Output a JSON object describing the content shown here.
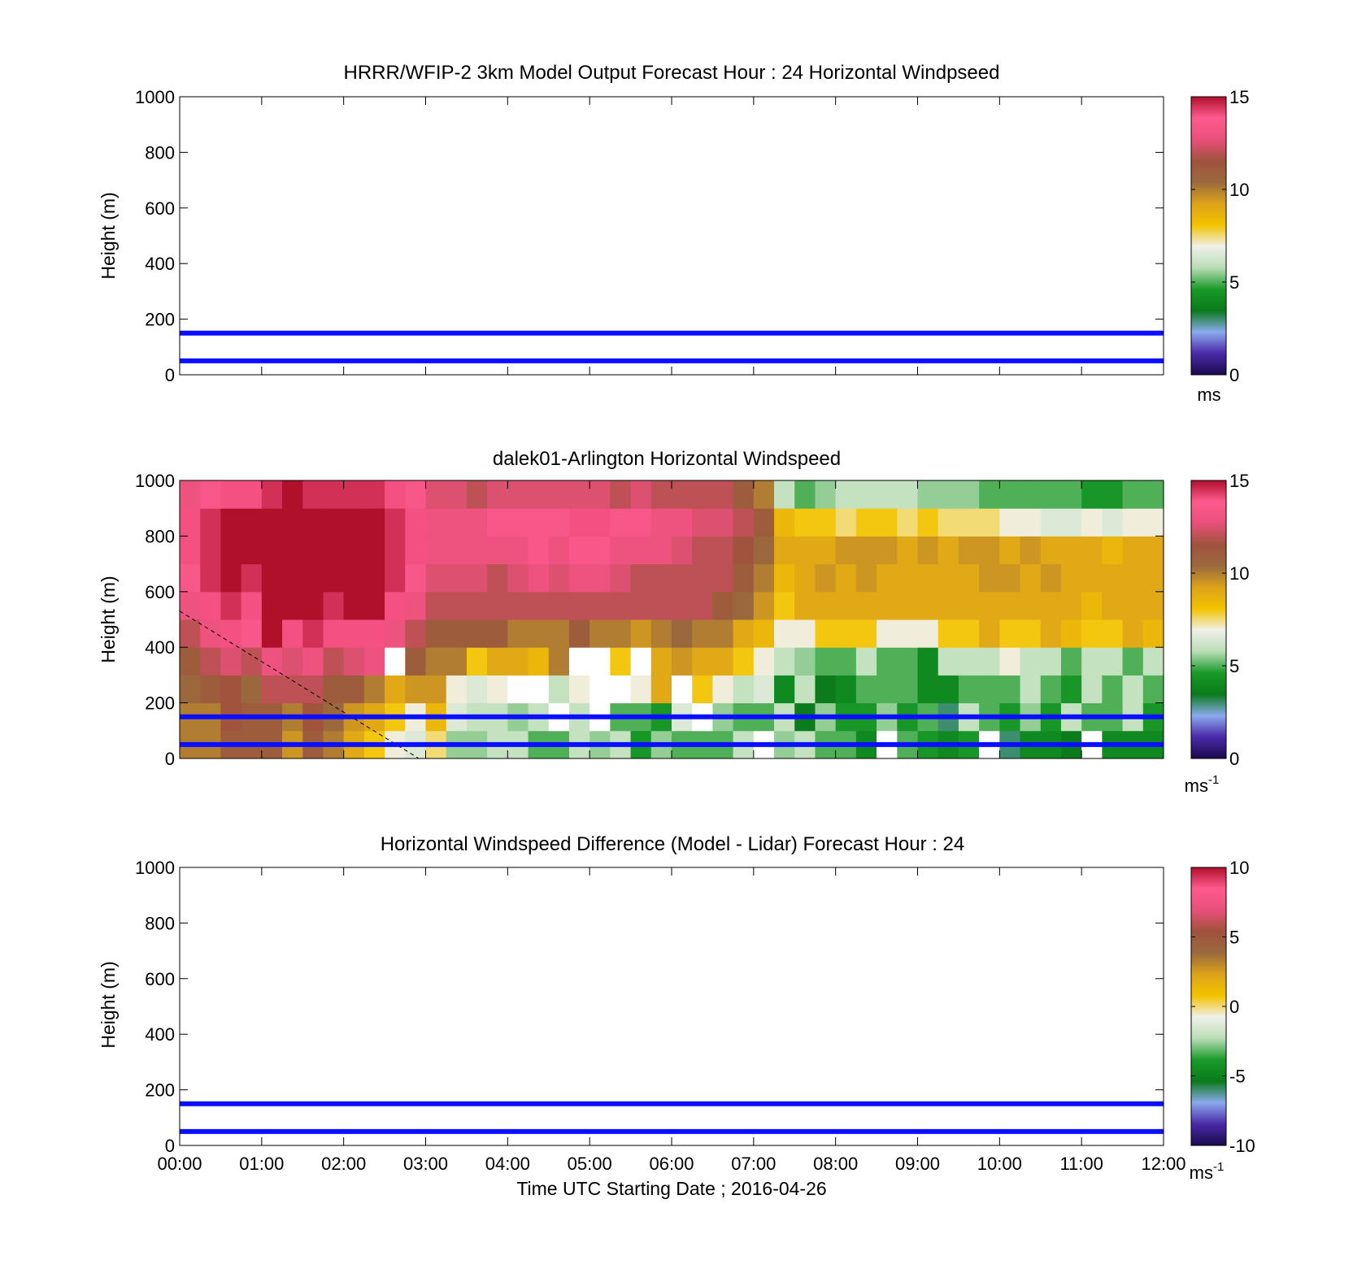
{
  "palette": {
    "axis": "#000000",
    "reference_line": "#0a10ff",
    "missing": "#ffffff"
  },
  "colormap_stops": [
    "#1a0a4e",
    "#4b2aa8",
    "#8aa9ee",
    "#0a7a1a",
    "#1a9a2a",
    "#b9ddb5",
    "#f0f0ea",
    "#f3c300",
    "#dca21a",
    "#9a6a3e",
    "#a0523d",
    "#e8507a",
    "#ff5a90",
    "#b0102a"
  ],
  "panels": [
    {
      "id": "model",
      "title": "HRRR/WFIP-2 3km Model Output   Forecast Hour : 24 Horizontal Windpseed",
      "ylabel": "Height (m)",
      "ylim": [
        0,
        1000
      ],
      "yticks": [
        "0",
        "200",
        "400",
        "600",
        "800",
        "1000"
      ],
      "colorbar": {
        "range": [
          0,
          15
        ],
        "ticks": [
          "0",
          "5",
          "10",
          "15"
        ],
        "unit": "ms",
        "unit_sup": ""
      },
      "reference_lines_m": [
        50,
        150
      ],
      "has_data": false
    },
    {
      "id": "lidar",
      "title": "dalek01-Arlington  Horizontal Windspeed",
      "ylabel": "Height (m)",
      "ylim": [
        0,
        1000
      ],
      "yticks": [
        "0",
        "200",
        "400",
        "600",
        "800",
        "1000"
      ],
      "colorbar": {
        "range": [
          0,
          15
        ],
        "ticks": [
          "0",
          "5",
          "10",
          "15"
        ],
        "unit": "ms",
        "unit_sup": "-1"
      },
      "reference_lines_m": [
        50,
        150
      ],
      "has_data": true
    },
    {
      "id": "difference",
      "title": "Horizontal Windspeed Difference (Model - Lidar) Forecast Hour : 24",
      "ylabel": "Height (m)",
      "ylim": [
        0,
        1000
      ],
      "yticks": [
        "0",
        "200",
        "400",
        "600",
        "800",
        "1000"
      ],
      "colorbar": {
        "range": [
          -10,
          10
        ],
        "ticks": [
          "-10",
          "-5",
          "0",
          "5",
          "10"
        ],
        "unit": "ms",
        "unit_sup": "-1"
      },
      "reference_lines_m": [
        50,
        150
      ],
      "has_data": false
    }
  ],
  "xaxis": {
    "ticks": [
      "00:00",
      "01:00",
      "02:00",
      "03:00",
      "04:00",
      "05:00",
      "06:00",
      "07:00",
      "08:00",
      "09:00",
      "10:00",
      "11:00",
      "12:00"
    ],
    "label": "Time UTC  Starting Date ; 2016-04-26"
  },
  "chart_data": {
    "type": "heatmap",
    "title": "dalek01-Arlington  Horizontal Windspeed",
    "xlabel": "Time UTC  Starting Date ; 2016-04-26",
    "ylabel": "Height (m)",
    "x_range": [
      "00:00",
      "12:00"
    ],
    "ylim": [
      0,
      1000
    ],
    "value_unit": "ms-1",
    "color_range": [
      0,
      15
    ],
    "column_start_times": [
      "00:00",
      "00:15",
      "00:30",
      "00:45",
      "01:00",
      "01:15",
      "01:30",
      "01:45",
      "02:00",
      "02:15",
      "02:30",
      "02:45",
      "03:00",
      "03:15",
      "03:30",
      "03:45",
      "04:00",
      "04:15",
      "04:30",
      "04:45",
      "05:00",
      "05:15",
      "05:30",
      "05:45",
      "06:00",
      "06:15",
      "06:30",
      "06:45",
      "07:00",
      "07:15",
      "07:30",
      "07:45",
      "08:00",
      "08:15",
      "08:30",
      "08:45",
      "09:00",
      "09:15",
      "09:30",
      "09:45",
      "10:00",
      "10:15",
      "10:30",
      "10:45",
      "11:00",
      "11:15",
      "11:30",
      "11:45"
    ],
    "column_end_time": "11:45",
    "height_bands_m": [
      [
        0,
        100
      ],
      [
        100,
        200
      ],
      [
        200,
        300
      ],
      [
        300,
        400
      ],
      [
        400,
        500
      ],
      [
        500,
        600
      ],
      [
        600,
        700
      ],
      [
        700,
        800
      ],
      [
        800,
        900
      ],
      [
        900,
        1000
      ]
    ],
    "values": [
      [
        10,
        10,
        11,
        11,
        11,
        9.5,
        11,
        10,
        9,
        8,
        7,
        6.5,
        7.5,
        5.5,
        5.5,
        6,
        6,
        5,
        5,
        6,
        5.5,
        6,
        4.5,
        5.5,
        5,
        5,
        5,
        6,
        null,
        5.5,
        6,
        5,
        5,
        4,
        null,
        5,
        4.5,
        4,
        4.5,
        null,
        3,
        4,
        4,
        3.5,
        null,
        4,
        4,
        4
      ],
      [
        10,
        10,
        11.5,
        11,
        11,
        10,
        11.5,
        10.5,
        9.5,
        9,
        8,
        7,
        8.5,
        6.5,
        6,
        6,
        5.5,
        6,
        null,
        6,
        null,
        5,
        5,
        4.5,
        6.5,
        null,
        5.5,
        5,
        5,
        6,
        3.5,
        5.5,
        4.5,
        4.5,
        5.5,
        4.5,
        5,
        3,
        6,
        5,
        4.5,
        5.5,
        4.5,
        6,
        5,
        5,
        6,
        4.5
      ],
      [
        10.5,
        11,
        11.5,
        10.5,
        12,
        12,
        12,
        11,
        11,
        10,
        9,
        9.5,
        9.5,
        7,
        6.5,
        7,
        null,
        null,
        6,
        7,
        null,
        null,
        7,
        9,
        null,
        8,
        7,
        6,
        6.5,
        4,
        6,
        3.5,
        4,
        5,
        5,
        5,
        4,
        4,
        5,
        5,
        5,
        6,
        5,
        4.5,
        6,
        5,
        6,
        5
      ],
      [
        11,
        12,
        12.5,
        12,
        13,
        12.5,
        13,
        12,
        12.5,
        13,
        null,
        11,
        10,
        10,
        8,
        9,
        9,
        8.5,
        10,
        null,
        null,
        8,
        null,
        9,
        9.5,
        9,
        9,
        8,
        7,
        6,
        5.5,
        5,
        5,
        6,
        5,
        5,
        4,
        6,
        6,
        6,
        7,
        6,
        6,
        5,
        6,
        6,
        5,
        6
      ],
      [
        12,
        13,
        14,
        13.5,
        15,
        14,
        14.5,
        14,
        14,
        14,
        13,
        12,
        11,
        11,
        11,
        11,
        10,
        10,
        10,
        11,
        10,
        10,
        9.5,
        10,
        10.5,
        10,
        10,
        9,
        8.5,
        7,
        7,
        8,
        8,
        8,
        7,
        7,
        7,
        8,
        8,
        9,
        8,
        8,
        9,
        8.5,
        8,
        8,
        9,
        8.5
      ],
      [
        13,
        14,
        14.5,
        14,
        15,
        15,
        15,
        14.5,
        15,
        15,
        14,
        13,
        12,
        12,
        12,
        12,
        12,
        12,
        12,
        12,
        12,
        12,
        12,
        12,
        12,
        12,
        11,
        10.5,
        9.5,
        8,
        9,
        9,
        9,
        9,
        9,
        9,
        9,
        9,
        9,
        9,
        9,
        9,
        9,
        9,
        8.5,
        9,
        9,
        9
      ],
      [
        13.5,
        14.5,
        15,
        14.5,
        15,
        15,
        15,
        15,
        15,
        15,
        14.5,
        13.5,
        12.5,
        12.5,
        12.5,
        12,
        12.5,
        13,
        12.5,
        13,
        13,
        12.5,
        12,
        12,
        12,
        12,
        12,
        11,
        10,
        8.5,
        9,
        9.5,
        9,
        9.5,
        9,
        9,
        9,
        9,
        9,
        9.5,
        9.5,
        9,
        9.5,
        9,
        9,
        9,
        9,
        9
      ],
      [
        14,
        14.5,
        15,
        15,
        15,
        15,
        15,
        15,
        15,
        15,
        14.5,
        14,
        13,
        13,
        13,
        13,
        13,
        13.5,
        13,
        13.5,
        13.5,
        13,
        13,
        13,
        12.5,
        12,
        12,
        11.5,
        10.5,
        9,
        9,
        9,
        9.5,
        9.5,
        9.5,
        9,
        9.5,
        9,
        9.5,
        9.5,
        9,
        9.5,
        9,
        9,
        9,
        8.5,
        9,
        9
      ],
      [
        14,
        14.5,
        15,
        15,
        15,
        15,
        15,
        15,
        15,
        15,
        14.5,
        14,
        13,
        13,
        13,
        13.5,
        13.5,
        13.5,
        13.5,
        14,
        14,
        13.5,
        13.5,
        13,
        13,
        12.5,
        12.5,
        12,
        11,
        8.5,
        8,
        8,
        7.5,
        8,
        8,
        7.5,
        8,
        7.5,
        7.5,
        7.5,
        7,
        7,
        6.5,
        6.5,
        7,
        6.5,
        7,
        7
      ],
      [
        13,
        13.5,
        14,
        14,
        14.5,
        15,
        14.5,
        14.5,
        14.5,
        14.5,
        14,
        13.5,
        12.5,
        12.5,
        12,
        12.5,
        12.5,
        12.5,
        12.5,
        12.5,
        12.5,
        12,
        12.5,
        12,
        12,
        12,
        12,
        11,
        10,
        6,
        5,
        5.5,
        6,
        6,
        6,
        6,
        5.5,
        5.5,
        5.5,
        5,
        5,
        5,
        5,
        5,
        4.5,
        4.5,
        5,
        5
      ]
    ],
    "reference_heights_m": [
      50,
      150
    ],
    "dashed_line": {
      "from": {
        "x": "00:00",
        "y": 530
      },
      "to": {
        "x": "02:55",
        "y": 0
      }
    },
    "grid": false
  }
}
